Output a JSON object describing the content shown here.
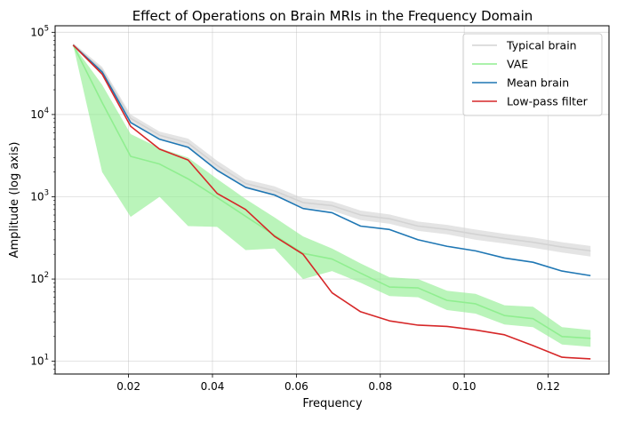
{
  "chart_data": {
    "type": "line",
    "title": "Effect of Operations on Brain MRIs in the Frequency Domain",
    "xlabel": "Frequency",
    "ylabel": "Amplitude (log axis)",
    "xlim": [
      0.0025,
      0.1345
    ],
    "ylim": [
      7,
      120000
    ],
    "yscale": "log",
    "grid": true,
    "legend_position": "top-right",
    "x_ticks": [
      0.02,
      0.04,
      0.06,
      0.08,
      0.1,
      0.12
    ],
    "x_tick_labels": [
      "0.02",
      "0.04",
      "0.06",
      "0.08",
      "0.10",
      "0.12"
    ],
    "y_ticks": [
      10,
      100,
      1000,
      10000,
      100000
    ],
    "y_tick_labels": [
      {
        "base": "10",
        "exp": "1"
      },
      {
        "base": "10",
        "exp": "2"
      },
      {
        "base": "10",
        "exp": "3"
      },
      {
        "base": "10",
        "exp": "4"
      },
      {
        "base": "10",
        "exp": "5"
      }
    ],
    "x": [
      0.0068,
      0.0137,
      0.0205,
      0.0274,
      0.0342,
      0.0411,
      0.0479,
      0.0548,
      0.0616,
      0.0685,
      0.0753,
      0.0822,
      0.089,
      0.0959,
      0.1027,
      0.1096,
      0.1164,
      0.1233,
      0.1301
    ],
    "series": [
      {
        "name": "Typical brain",
        "color": "#d3d3d3",
        "values": [
          70000,
          35000,
          9000,
          5600,
          4500,
          2400,
          1450,
          1180,
          850,
          780,
          600,
          540,
          440,
          400,
          350,
          310,
          280,
          245,
          220
        ],
        "band_lower": [
          66000,
          32000,
          8000,
          5000,
          3900,
          2050,
          1280,
          1020,
          740,
          680,
          520,
          470,
          385,
          350,
          300,
          270,
          240,
          210,
          188
        ],
        "band_upper": [
          74000,
          38000,
          10000,
          6200,
          5100,
          2750,
          1630,
          1340,
          960,
          880,
          680,
          610,
          500,
          455,
          400,
          355,
          320,
          280,
          252
        ]
      },
      {
        "name": "VAE",
        "color": "#90ee90",
        "values": [
          70000,
          14000,
          3100,
          2500,
          1650,
          980,
          580,
          340,
          205,
          175,
          118,
          80,
          78,
          55,
          50,
          36,
          33,
          20,
          19
        ],
        "band_lower": [
          70000,
          2000,
          570,
          1000,
          440,
          430,
          225,
          235,
          100,
          125,
          90,
          62,
          60,
          42,
          38,
          28,
          26,
          16,
          15
        ],
        "band_upper": [
          70000,
          23000,
          5800,
          3900,
          3000,
          1650,
          940,
          560,
          330,
          235,
          155,
          105,
          100,
          72,
          66,
          48,
          46,
          26,
          24
        ]
      },
      {
        "name": "Mean brain",
        "color": "#1f77b4",
        "values": [
          70000,
          33000,
          8000,
          5000,
          4000,
          2100,
          1300,
          1050,
          720,
          640,
          440,
          400,
          300,
          250,
          220,
          180,
          160,
          125,
          110
        ]
      },
      {
        "name": "Low-pass filter",
        "color": "#d62728",
        "values": [
          70000,
          31000,
          7200,
          3800,
          2800,
          1100,
          700,
          330,
          200,
          68,
          40,
          31,
          27.5,
          26.5,
          24,
          21,
          15.5,
          11.2,
          10.7
        ]
      }
    ]
  }
}
